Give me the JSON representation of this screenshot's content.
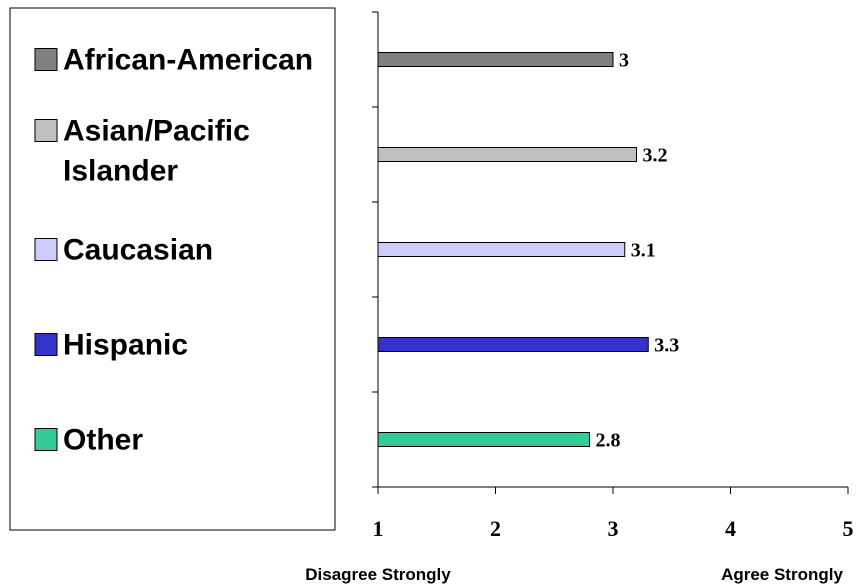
{
  "chart_data": {
    "type": "bar",
    "orientation": "horizontal",
    "categories": [
      "African-American",
      "Asian/Pacific Islander",
      "Caucasian",
      "Hispanic",
      "Other"
    ],
    "values": [
      3,
      3.2,
      3.1,
      3.3,
      2.8
    ],
    "value_labels": [
      "3",
      "3.2",
      "3.1",
      "3.3",
      "2.8"
    ],
    "colors": [
      "#808080",
      "#c0c0c0",
      "#ccccff",
      "#3333cc",
      "#33cc99"
    ],
    "xlim": [
      1,
      5
    ],
    "x_ticks": [
      "1",
      "2",
      "3",
      "4",
      "5"
    ],
    "x_anchor_labels": {
      "low": "Disagree Strongly",
      "high": "Agree Strongly"
    },
    "legend": {
      "position": "left",
      "entries": [
        {
          "lines": [
            "African-American"
          ]
        },
        {
          "lines": [
            "Asian/Pacific",
            "Islander"
          ]
        },
        {
          "lines": [
            "Caucasian"
          ]
        },
        {
          "lines": [
            "Hispanic"
          ]
        },
        {
          "lines": [
            "Other"
          ]
        }
      ]
    },
    "grid": false
  }
}
